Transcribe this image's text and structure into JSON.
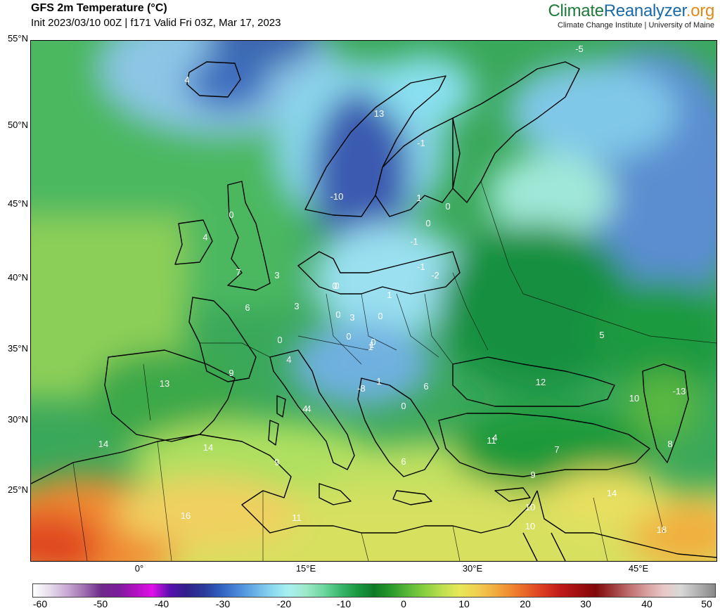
{
  "header": {
    "title": "GFS 2m Temperature (°C)",
    "subtitle": "Init 2023/03/10 00Z | f171 Valid Fri 03Z, Mar 17, 2023",
    "brand_part1": "Climate",
    "brand_part2": "Reanalyzer",
    "brand_part3": ".org",
    "brand_sub": "Climate Change Institute | University of Maine"
  },
  "map": {
    "lat_labels": [
      "55°N",
      "50°N",
      "45°N",
      "40°N",
      "35°N",
      "30°N",
      "25°N"
    ],
    "lon_labels": [
      "0°",
      "15°E",
      "30°E",
      "45°E"
    ],
    "temperature_labels": [
      "-5",
      "4",
      "13",
      "-1",
      "-10",
      "0",
      "1",
      "0",
      "0",
      "-1",
      "-1",
      "-2",
      "0",
      "1",
      "4",
      "0",
      "7",
      "3",
      "3",
      "6",
      "0",
      "3",
      "0",
      "1",
      "0",
      "0",
      "0",
      "1",
      "4",
      "5",
      "9",
      "4",
      "12",
      "13",
      "-8",
      "1",
      "6",
      "11",
      "10",
      "-13",
      "0",
      "4",
      "4",
      "14",
      "14",
      "8",
      "7",
      "9",
      "6",
      "9",
      "10",
      "16",
      "11",
      "14",
      "10",
      "18"
    ]
  },
  "colorbar": {
    "labels": [
      "-60",
      "-50",
      "-40",
      "-30",
      "-20",
      "-10",
      "0",
      "10",
      "20",
      "30",
      "40",
      "50"
    ],
    "colors": [
      "#ffffff",
      "#e6dcec",
      "#c8a8d4",
      "#a070b0",
      "#6e2a8a",
      "#7a1c9a",
      "#b010c0",
      "#e010e8",
      "#5a10b0",
      "#30208a",
      "#2a3a9a",
      "#3060c0",
      "#4a88d8",
      "#68b0e8",
      "#8ad8f0",
      "#a8f0f0",
      "#9ee8c8",
      "#6ed8a0",
      "#3cb870",
      "#1a9a40",
      "#0e7a28",
      "#2a9a2a",
      "#5ab83a",
      "#8ad040",
      "#bce050",
      "#e8e858",
      "#f0d050",
      "#f0b040",
      "#f08a30",
      "#e86028",
      "#d83820",
      "#c01818",
      "#a00e10",
      "#800808",
      "#a03a3a",
      "#c07070",
      "#d8a0a0",
      "#e8c8c8",
      "#d8d8d8",
      "#b0b0b0",
      "#888888"
    ]
  }
}
